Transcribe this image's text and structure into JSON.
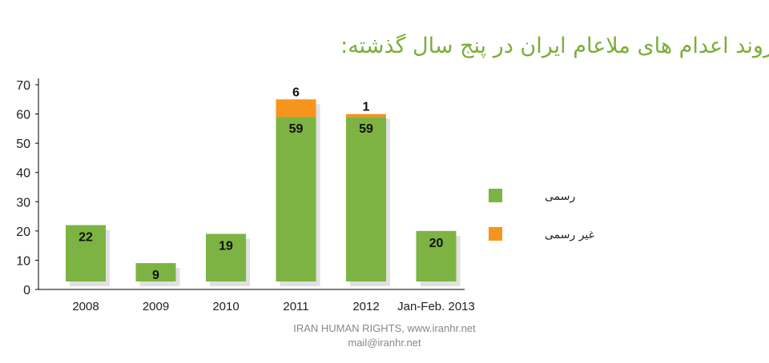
{
  "chart_data": {
    "type": "bar",
    "stacked": true,
    "title": "روند اعدام های ملاعام ایران در پنج سال گذشته:",
    "categories": [
      "2008",
      "2009",
      "2010",
      "2011",
      "2012",
      "Jan-Feb. 2013"
    ],
    "series": [
      {
        "name": "رسمی",
        "color": "#7cb342",
        "values": [
          22,
          9,
          19,
          59,
          59,
          20
        ]
      },
      {
        "name": "غیر رسمی",
        "color": "#f7941d",
        "values": [
          0,
          0,
          0,
          6,
          1,
          0
        ]
      }
    ],
    "ylim": [
      0,
      70
    ],
    "yticks": [
      0,
      10,
      20,
      30,
      40,
      50,
      60,
      70
    ],
    "legend": "right",
    "xlabel": "",
    "ylabel": ""
  },
  "footer": {
    "line1": "IRAN HUMAN RIGHTS, www.iranhr.net",
    "line2": "mail@iranhr.net"
  }
}
